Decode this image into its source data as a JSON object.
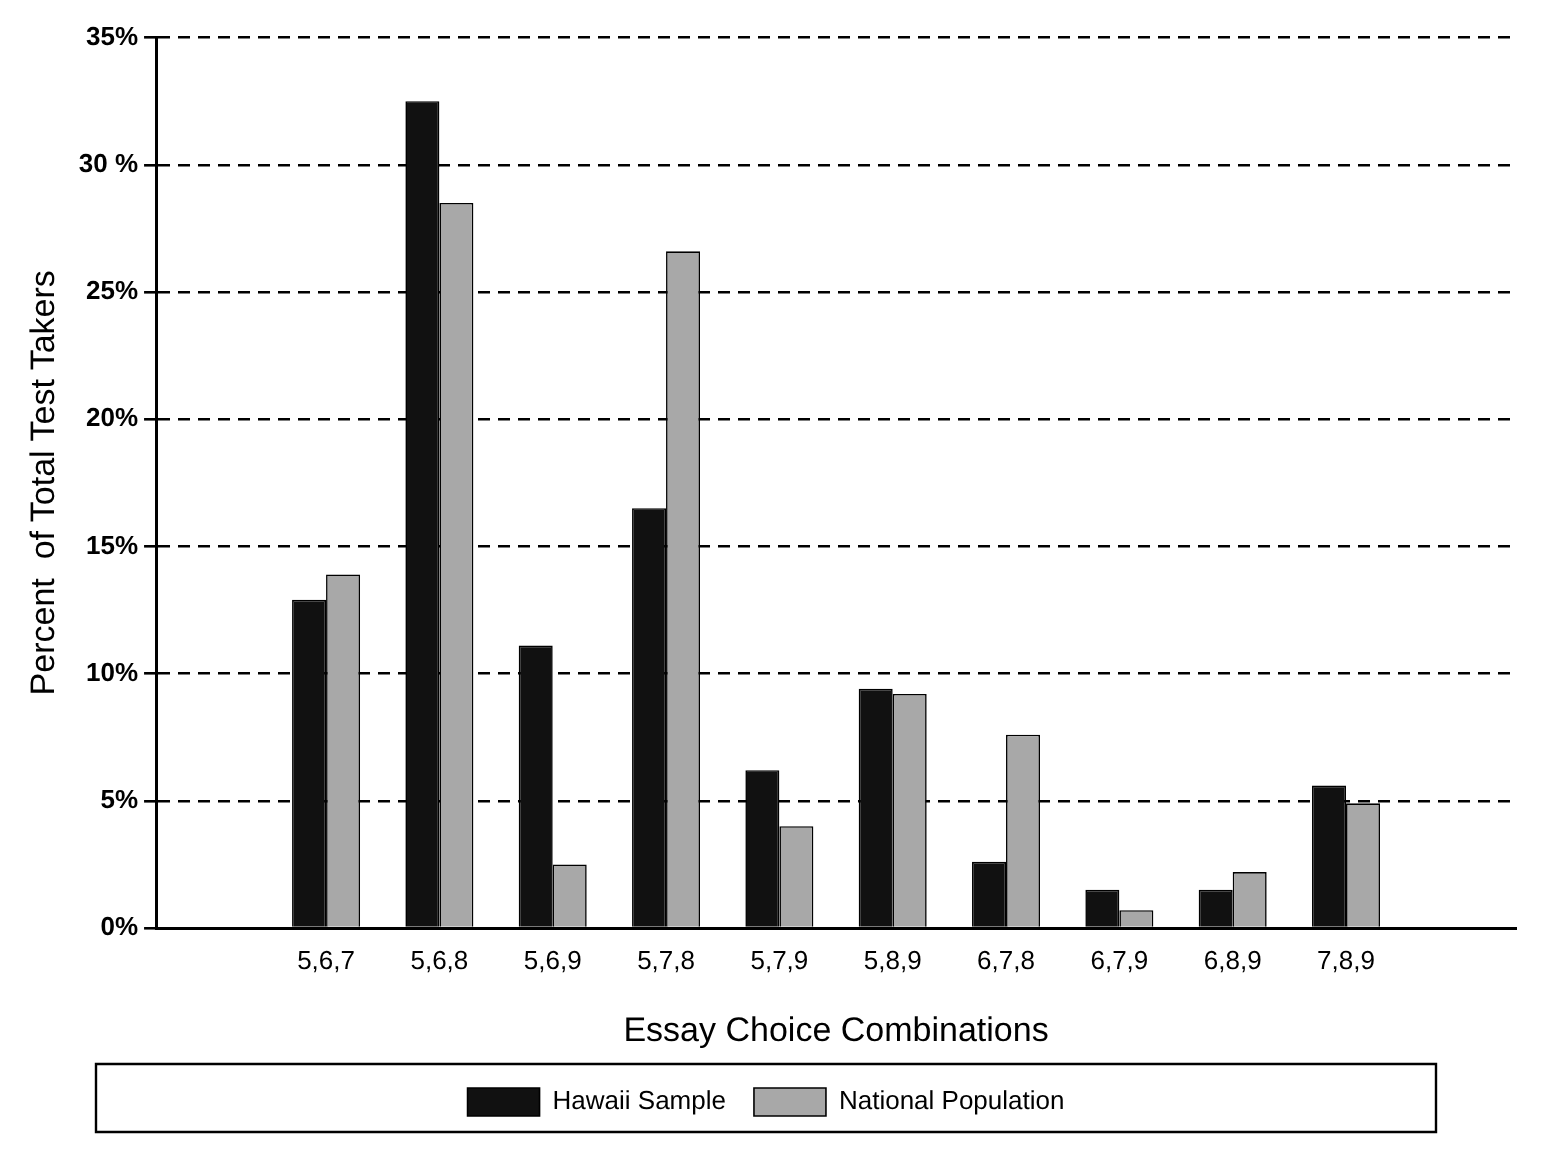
{
  "chart_data": {
    "type": "bar",
    "xlabel": "Essay Choice Combinations",
    "ylabel": "Percent  of Total Test Takers",
    "categories": [
      null,
      "5,6,7",
      "5,6,8",
      "5,6,9",
      "5,7,8",
      "5,7,9",
      "5,8,9",
      "6,7,8",
      "6,7,9",
      "6,8,9",
      "7,8,9",
      null
    ],
    "series": [
      {
        "name": "Hawaii Sample",
        "color": "#111111",
        "values": [
          null,
          12.9,
          32.5,
          11.1,
          16.5,
          6.2,
          9.4,
          2.6,
          1.5,
          1.5,
          5.6,
          null
        ]
      },
      {
        "name": "National Population",
        "color": "#a8a8a8",
        "values": [
          null,
          13.9,
          28.5,
          2.5,
          26.6,
          4.0,
          9.2,
          7.6,
          0.7,
          2.2,
          4.9,
          null
        ]
      }
    ],
    "ylim": [
      0,
      35
    ],
    "yticks": [
      {
        "value": 0,
        "label": "0%"
      },
      {
        "value": 5,
        "label": "5%"
      },
      {
        "value": 10,
        "label": "10%"
      },
      {
        "value": 15,
        "label": "15%"
      },
      {
        "value": 20,
        "label": "20%"
      },
      {
        "value": 25,
        "label": "25%"
      },
      {
        "value": 30,
        "label": "30 %"
      },
      {
        "value": 35,
        "label": "35%"
      }
    ],
    "grid": "y",
    "legend": "bottom"
  }
}
